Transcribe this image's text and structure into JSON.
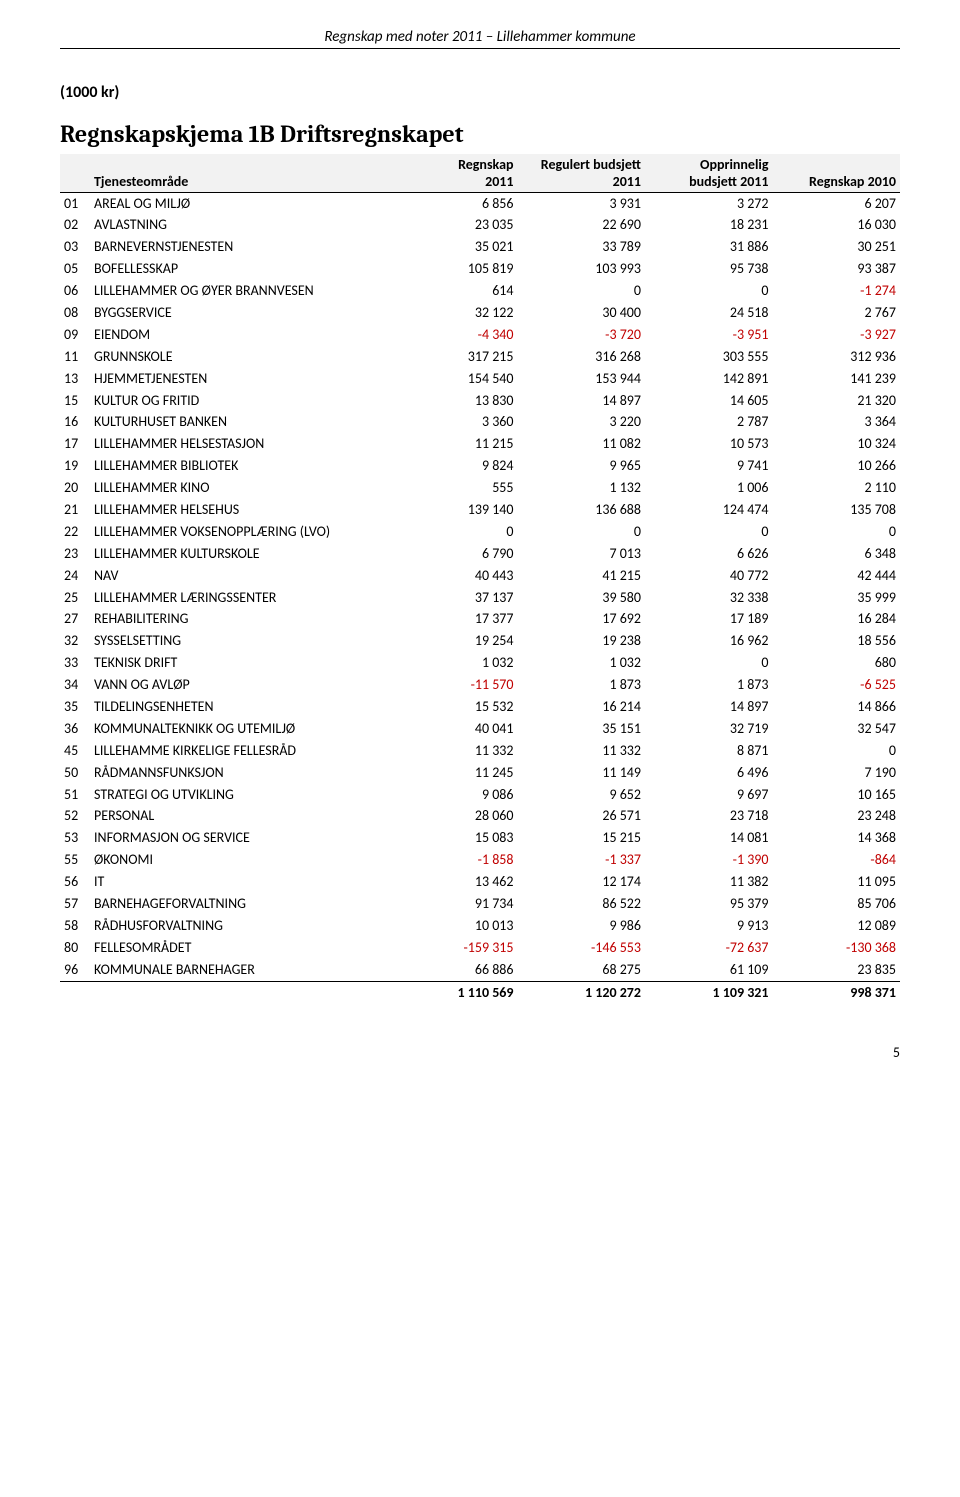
{
  "header": "Regnskap med noter 2011 – Lillehammer kommune",
  "unit_label": "(1000 kr)",
  "title": "Regnskapskjema 1B Driftsregnskapet",
  "columns": {
    "code": "",
    "name": "Tjenesteområde",
    "c1_top": "Regnskap",
    "c1_bot": "2011",
    "c2_top": "Regulert budsjett",
    "c2_bot": "2011",
    "c3_top": "Opprinnelig",
    "c3_bot": "budsjett 2011",
    "c4": "Regnskap 2010"
  },
  "negative_color": "#c00000",
  "rows": [
    {
      "code": "01",
      "name": "AREAL OG MILJØ",
      "v": [
        6856,
        3931,
        3272,
        6207
      ]
    },
    {
      "code": "02",
      "name": "AVLASTNING",
      "v": [
        23035,
        22690,
        18231,
        16030
      ]
    },
    {
      "code": "03",
      "name": "BARNEVERNSTJENESTEN",
      "v": [
        35021,
        33789,
        31886,
        30251
      ]
    },
    {
      "code": "05",
      "name": "BOFELLESSKAP",
      "v": [
        105819,
        103993,
        95738,
        93387
      ]
    },
    {
      "code": "06",
      "name": "LILLEHAMMER OG ØYER BRANNVESEN",
      "v": [
        614,
        0,
        0,
        -1274
      ]
    },
    {
      "code": "08",
      "name": "BYGGSERVICE",
      "v": [
        32122,
        30400,
        24518,
        2767
      ]
    },
    {
      "code": "09",
      "name": "EIENDOM",
      "v": [
        -4340,
        -3720,
        -3951,
        -3927
      ]
    },
    {
      "code": "11",
      "name": "GRUNNSKOLE",
      "v": [
        317215,
        316268,
        303555,
        312936
      ]
    },
    {
      "code": "13",
      "name": "HJEMMETJENESTEN",
      "v": [
        154540,
        153944,
        142891,
        141239
      ]
    },
    {
      "code": "15",
      "name": "KULTUR OG FRITID",
      "v": [
        13830,
        14897,
        14605,
        21320
      ]
    },
    {
      "code": "16",
      "name": "KULTURHUSET BANKEN",
      "v": [
        3360,
        3220,
        2787,
        3364
      ]
    },
    {
      "code": "17",
      "name": "LILLEHAMMER HELSESTASJON",
      "v": [
        11215,
        11082,
        10573,
        10324
      ]
    },
    {
      "code": "19",
      "name": "LILLEHAMMER BIBLIOTEK",
      "v": [
        9824,
        9965,
        9741,
        10266
      ]
    },
    {
      "code": "20",
      "name": "LILLEHAMMER KINO",
      "v": [
        555,
        1132,
        1006,
        2110
      ]
    },
    {
      "code": "21",
      "name": "LILLEHAMMER HELSEHUS",
      "v": [
        139140,
        136688,
        124474,
        135708
      ]
    },
    {
      "code": "22",
      "name": "LILLEHAMMER VOKSENOPPLÆRING (LVO)",
      "v": [
        0,
        0,
        0,
        0
      ]
    },
    {
      "code": "23",
      "name": "LILLEHAMMER KULTURSKOLE",
      "v": [
        6790,
        7013,
        6626,
        6348
      ]
    },
    {
      "code": "24",
      "name": "NAV",
      "v": [
        40443,
        41215,
        40772,
        42444
      ]
    },
    {
      "code": "25",
      "name": "LILLEHAMMER LÆRINGSSENTER",
      "v": [
        37137,
        39580,
        32338,
        35999
      ]
    },
    {
      "code": "27",
      "name": "REHABILITERING",
      "v": [
        17377,
        17692,
        17189,
        16284
      ]
    },
    {
      "code": "32",
      "name": "SYSSELSETTING",
      "v": [
        19254,
        19238,
        16962,
        18556
      ]
    },
    {
      "code": "33",
      "name": "TEKNISK DRIFT",
      "v": [
        1032,
        1032,
        0,
        680
      ]
    },
    {
      "code": "34",
      "name": "VANN OG AVLØP",
      "v": [
        -11570,
        1873,
        1873,
        -6525
      ]
    },
    {
      "code": "35",
      "name": "TILDELINGSENHETEN",
      "v": [
        15532,
        16214,
        14897,
        14866
      ]
    },
    {
      "code": "36",
      "name": "KOMMUNALTEKNIKK OG UTEMILJØ",
      "v": [
        40041,
        35151,
        32719,
        32547
      ]
    },
    {
      "code": "45",
      "name": "LILLEHAMME KIRKELIGE FELLESRÅD",
      "v": [
        11332,
        11332,
        8871,
        0
      ]
    },
    {
      "code": "50",
      "name": "RÅDMANNSFUNKSJON",
      "v": [
        11245,
        11149,
        6496,
        7190
      ]
    },
    {
      "code": "51",
      "name": "STRATEGI OG UTVIKLING",
      "v": [
        9086,
        9652,
        9697,
        10165
      ]
    },
    {
      "code": "52",
      "name": "PERSONAL",
      "v": [
        28060,
        26571,
        23718,
        23248
      ]
    },
    {
      "code": "53",
      "name": "INFORMASJON OG SERVICE",
      "v": [
        15083,
        15215,
        14081,
        14368
      ]
    },
    {
      "code": "55",
      "name": "ØKONOMI",
      "v": [
        -1858,
        -1337,
        -1390,
        -864
      ]
    },
    {
      "code": "56",
      "name": "IT",
      "v": [
        13462,
        12174,
        11382,
        11095
      ]
    },
    {
      "code": "57",
      "name": "BARNEHAGEFORVALTNING",
      "v": [
        91734,
        86522,
        95379,
        85706
      ]
    },
    {
      "code": "58",
      "name": "RÅDHUSFORVALTNING",
      "v": [
        10013,
        9986,
        9913,
        12089
      ]
    },
    {
      "code": "80",
      "name": "FELLESOMRÅDET",
      "v": [
        -159315,
        -146553,
        -72637,
        -130368
      ]
    },
    {
      "code": "96",
      "name": "KOMMUNALE BARNEHAGER",
      "v": [
        66886,
        68275,
        61109,
        23835
      ]
    }
  ],
  "total": {
    "code": "",
    "name": "",
    "v": [
      1110569,
      1120272,
      1109321,
      998371
    ]
  },
  "page_number": "5"
}
